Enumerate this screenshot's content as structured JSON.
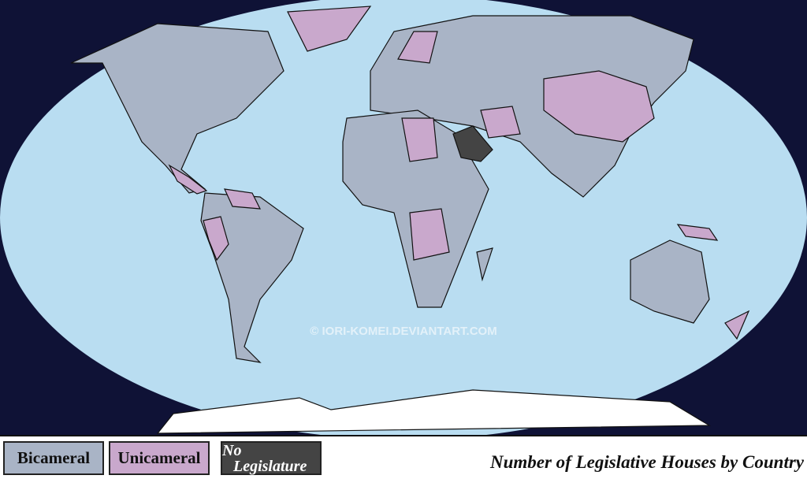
{
  "map": {
    "watermark": "© IORI-KOMEI.DEVIANTART.COM",
    "colors": {
      "background": "#0f1236",
      "ocean": "#b9ddf1",
      "bicameral": "#a9b4c6",
      "unicameral": "#c9a8cc",
      "no_legislature": "#444444",
      "antarctica": "#ffffff"
    }
  },
  "legend": {
    "items": [
      {
        "label": "Bicameral",
        "color": "#a9b4c6"
      },
      {
        "label": "Unicameral",
        "color": "#c9a8cc"
      },
      {
        "label_line1": "No",
        "label_line2": "Legislature",
        "color": "#444444"
      }
    ],
    "title": "Number of Legislative Houses by Country"
  }
}
